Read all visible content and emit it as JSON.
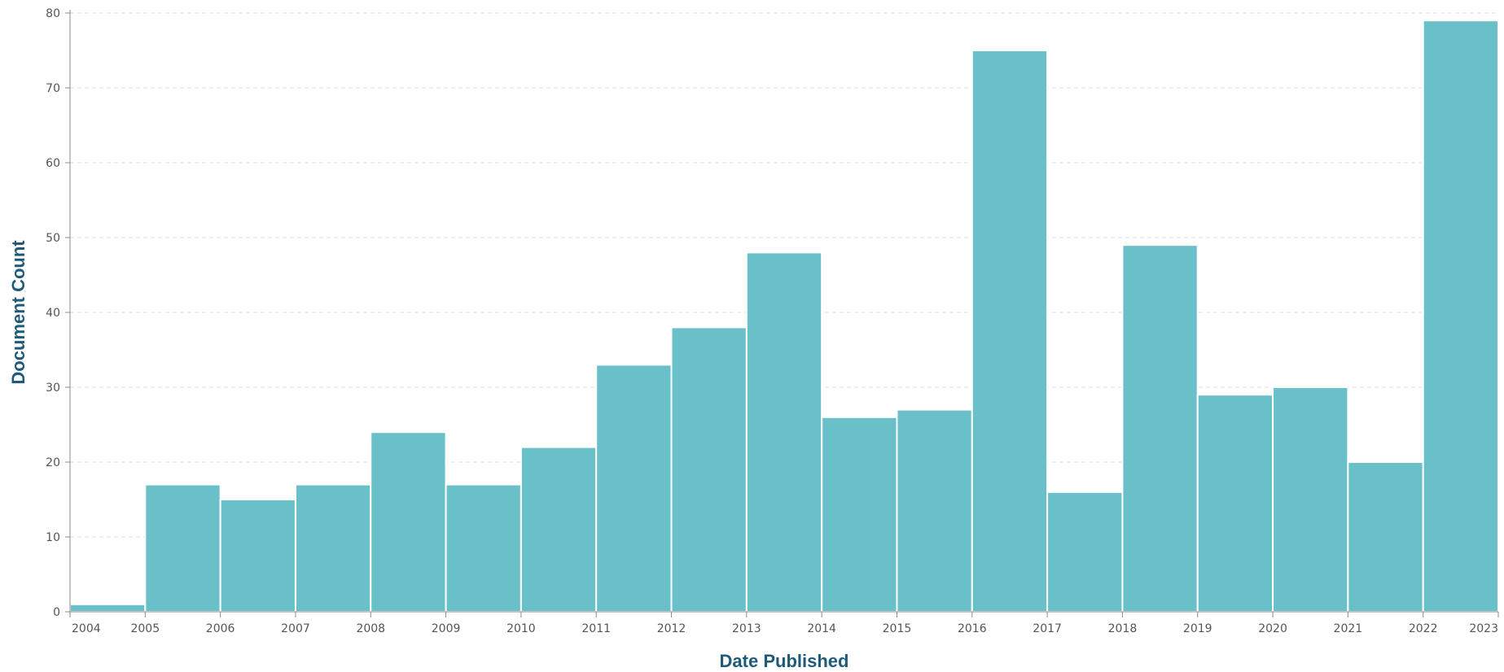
{
  "chart_data": {
    "type": "bar",
    "title": "",
    "xlabel": "Date Published",
    "ylabel": "Document Count",
    "ylim": [
      0,
      80
    ],
    "yticks": [
      0,
      10,
      20,
      30,
      40,
      50,
      60,
      70,
      80
    ],
    "x_ticks": [
      "2004",
      "2005",
      "2006",
      "2007",
      "2008",
      "2009",
      "2010",
      "2011",
      "2012",
      "2013",
      "2014",
      "2015",
      "2016",
      "2017",
      "2018",
      "2019",
      "2020",
      "2021",
      "2022",
      "2023"
    ],
    "categories": [
      "2004",
      "2005",
      "2006",
      "2007",
      "2008",
      "2009",
      "2010",
      "2011",
      "2012",
      "2013",
      "2014",
      "2015",
      "2016",
      "2017",
      "2018",
      "2019",
      "2020",
      "2021",
      "2022"
    ],
    "values": [
      1,
      17,
      15,
      17,
      24,
      17,
      22,
      33,
      38,
      48,
      26,
      27,
      75,
      16,
      49,
      29,
      30,
      20,
      79
    ],
    "grid": true,
    "bar_color": "#69c0c9",
    "axis_title_color": "#1e5a7a"
  }
}
